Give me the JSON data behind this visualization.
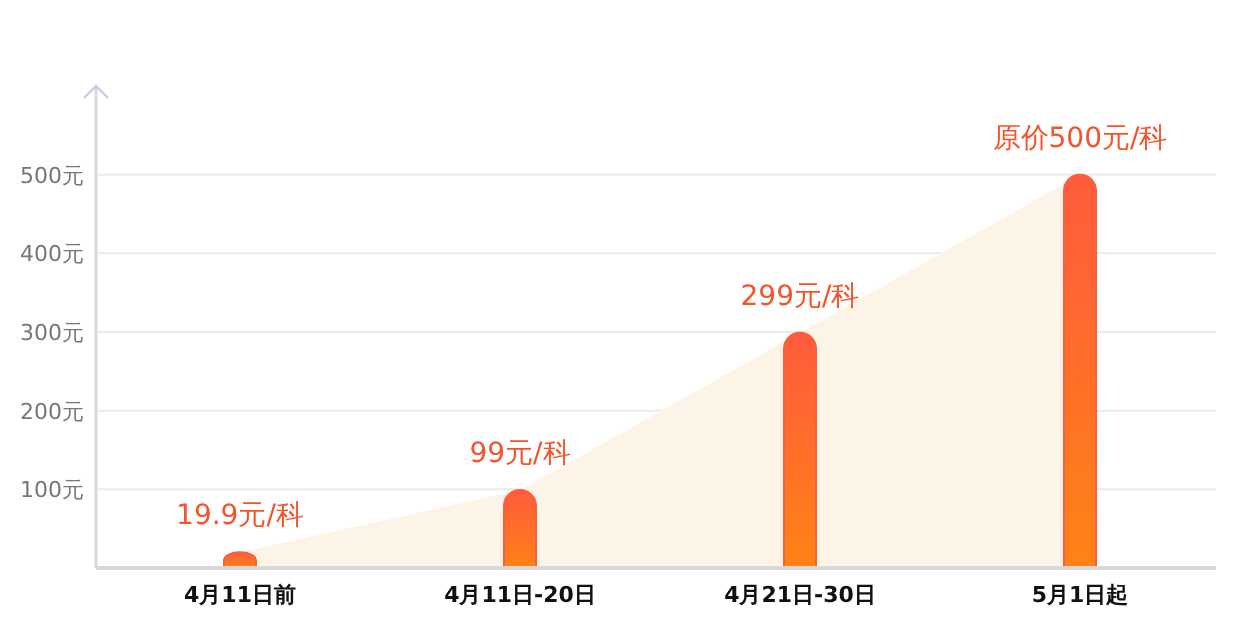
{
  "chart_data": {
    "type": "bar",
    "categories": [
      "4月11日前",
      "4月11日-20日",
      "4月21日-30日",
      "5月1日起"
    ],
    "series": [
      {
        "type": "area",
        "color": "#fdf4e8",
        "values": [
          19.9,
          99,
          299,
          500
        ]
      },
      {
        "color": "#ff5b3d",
        "values": [
          19.9,
          99,
          299,
          500
        ],
        "value_labels": [
          "19.9元/科",
          "99元/科",
          "299元/科",
          "原价500元/科"
        ]
      }
    ],
    "ylim": [
      0,
      600
    ],
    "yticks": [
      {
        "value": 0,
        "label": null
      },
      {
        "value": 100,
        "label": "100元"
      },
      {
        "value": 200,
        "label": "200元"
      },
      {
        "value": 300,
        "label": "300元"
      },
      {
        "value": 400,
        "label": "400元"
      },
      {
        "value": 500,
        "label": "500元"
      }
    ],
    "grid": "y",
    "legend": false
  }
}
